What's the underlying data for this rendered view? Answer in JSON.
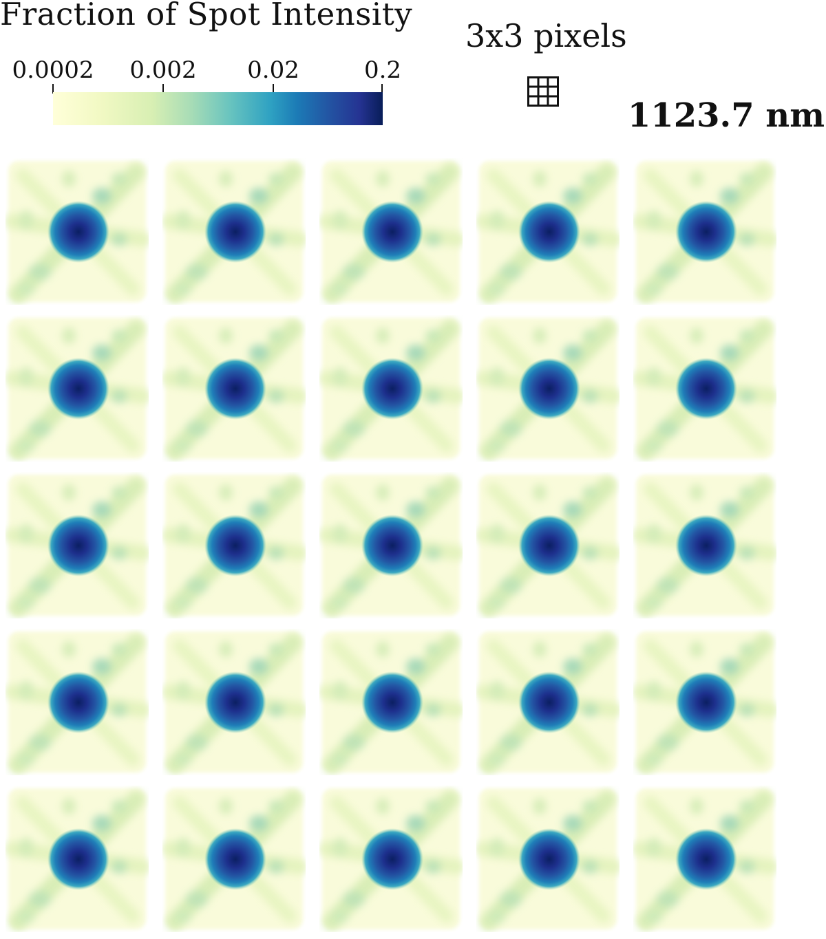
{
  "colorbar": {
    "title": "Fraction of Spot Intensity",
    "ticks": [
      "0.0002",
      "0.002",
      "0.02",
      "0.2"
    ],
    "colormap": [
      "#ffffd9",
      "#f2f9c4",
      "#d8efb3",
      "#a7dcb6",
      "#67c3bf",
      "#2ea1c2",
      "#1c7bb6",
      "#2353a2",
      "#253392",
      "#081d58"
    ],
    "scale": "log"
  },
  "pixel_legend": {
    "label": "3x3 pixels",
    "icon": "grid-3x3-icon"
  },
  "scale_label": "1123.7 nm",
  "grid": {
    "rows": 5,
    "columns": 5
  }
}
